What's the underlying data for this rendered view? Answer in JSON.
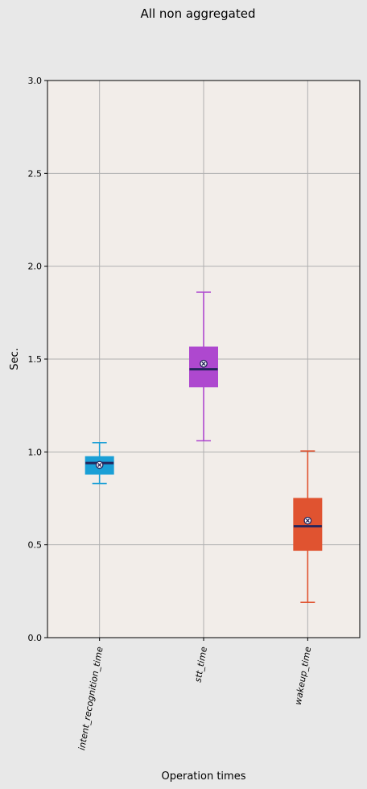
{
  "chart_data": {
    "type": "box",
    "title": "All non aggregated",
    "xlabel": "Operation times",
    "ylabel": "Sec.",
    "ylim": [
      0,
      3.0
    ],
    "yticks": [
      "0.0",
      "0.5",
      "1.0",
      "1.5",
      "2.0",
      "2.5",
      "3.0"
    ],
    "grid": true,
    "categories": [
      "intent_recognition_time",
      "stt_time",
      "wakeup_time"
    ],
    "boxes": [
      {
        "category": "intent_recognition_time",
        "whisker_low": 0.83,
        "q1": 0.88,
        "median": 0.94,
        "mean": 0.93,
        "q3": 0.975,
        "whisker_high": 1.05,
        "color": "#1a9fd6"
      },
      {
        "category": "stt_time",
        "whisker_low": 1.06,
        "q1": 1.35,
        "median": 1.445,
        "mean": 1.475,
        "q3": 1.565,
        "whisker_high": 1.86,
        "color": "#ae48cf"
      },
      {
        "category": "wakeup_time",
        "whisker_low": 0.19,
        "q1": 0.47,
        "median": 0.6,
        "mean": 0.63,
        "q3": 0.75,
        "whisker_high": 1.005,
        "color": "#e05330"
      }
    ],
    "colors": {
      "figure_background": "#e8e8e8",
      "plot_background": "#f2ede9",
      "grid": "#b0b0b0",
      "median_line": "#25255c"
    }
  }
}
